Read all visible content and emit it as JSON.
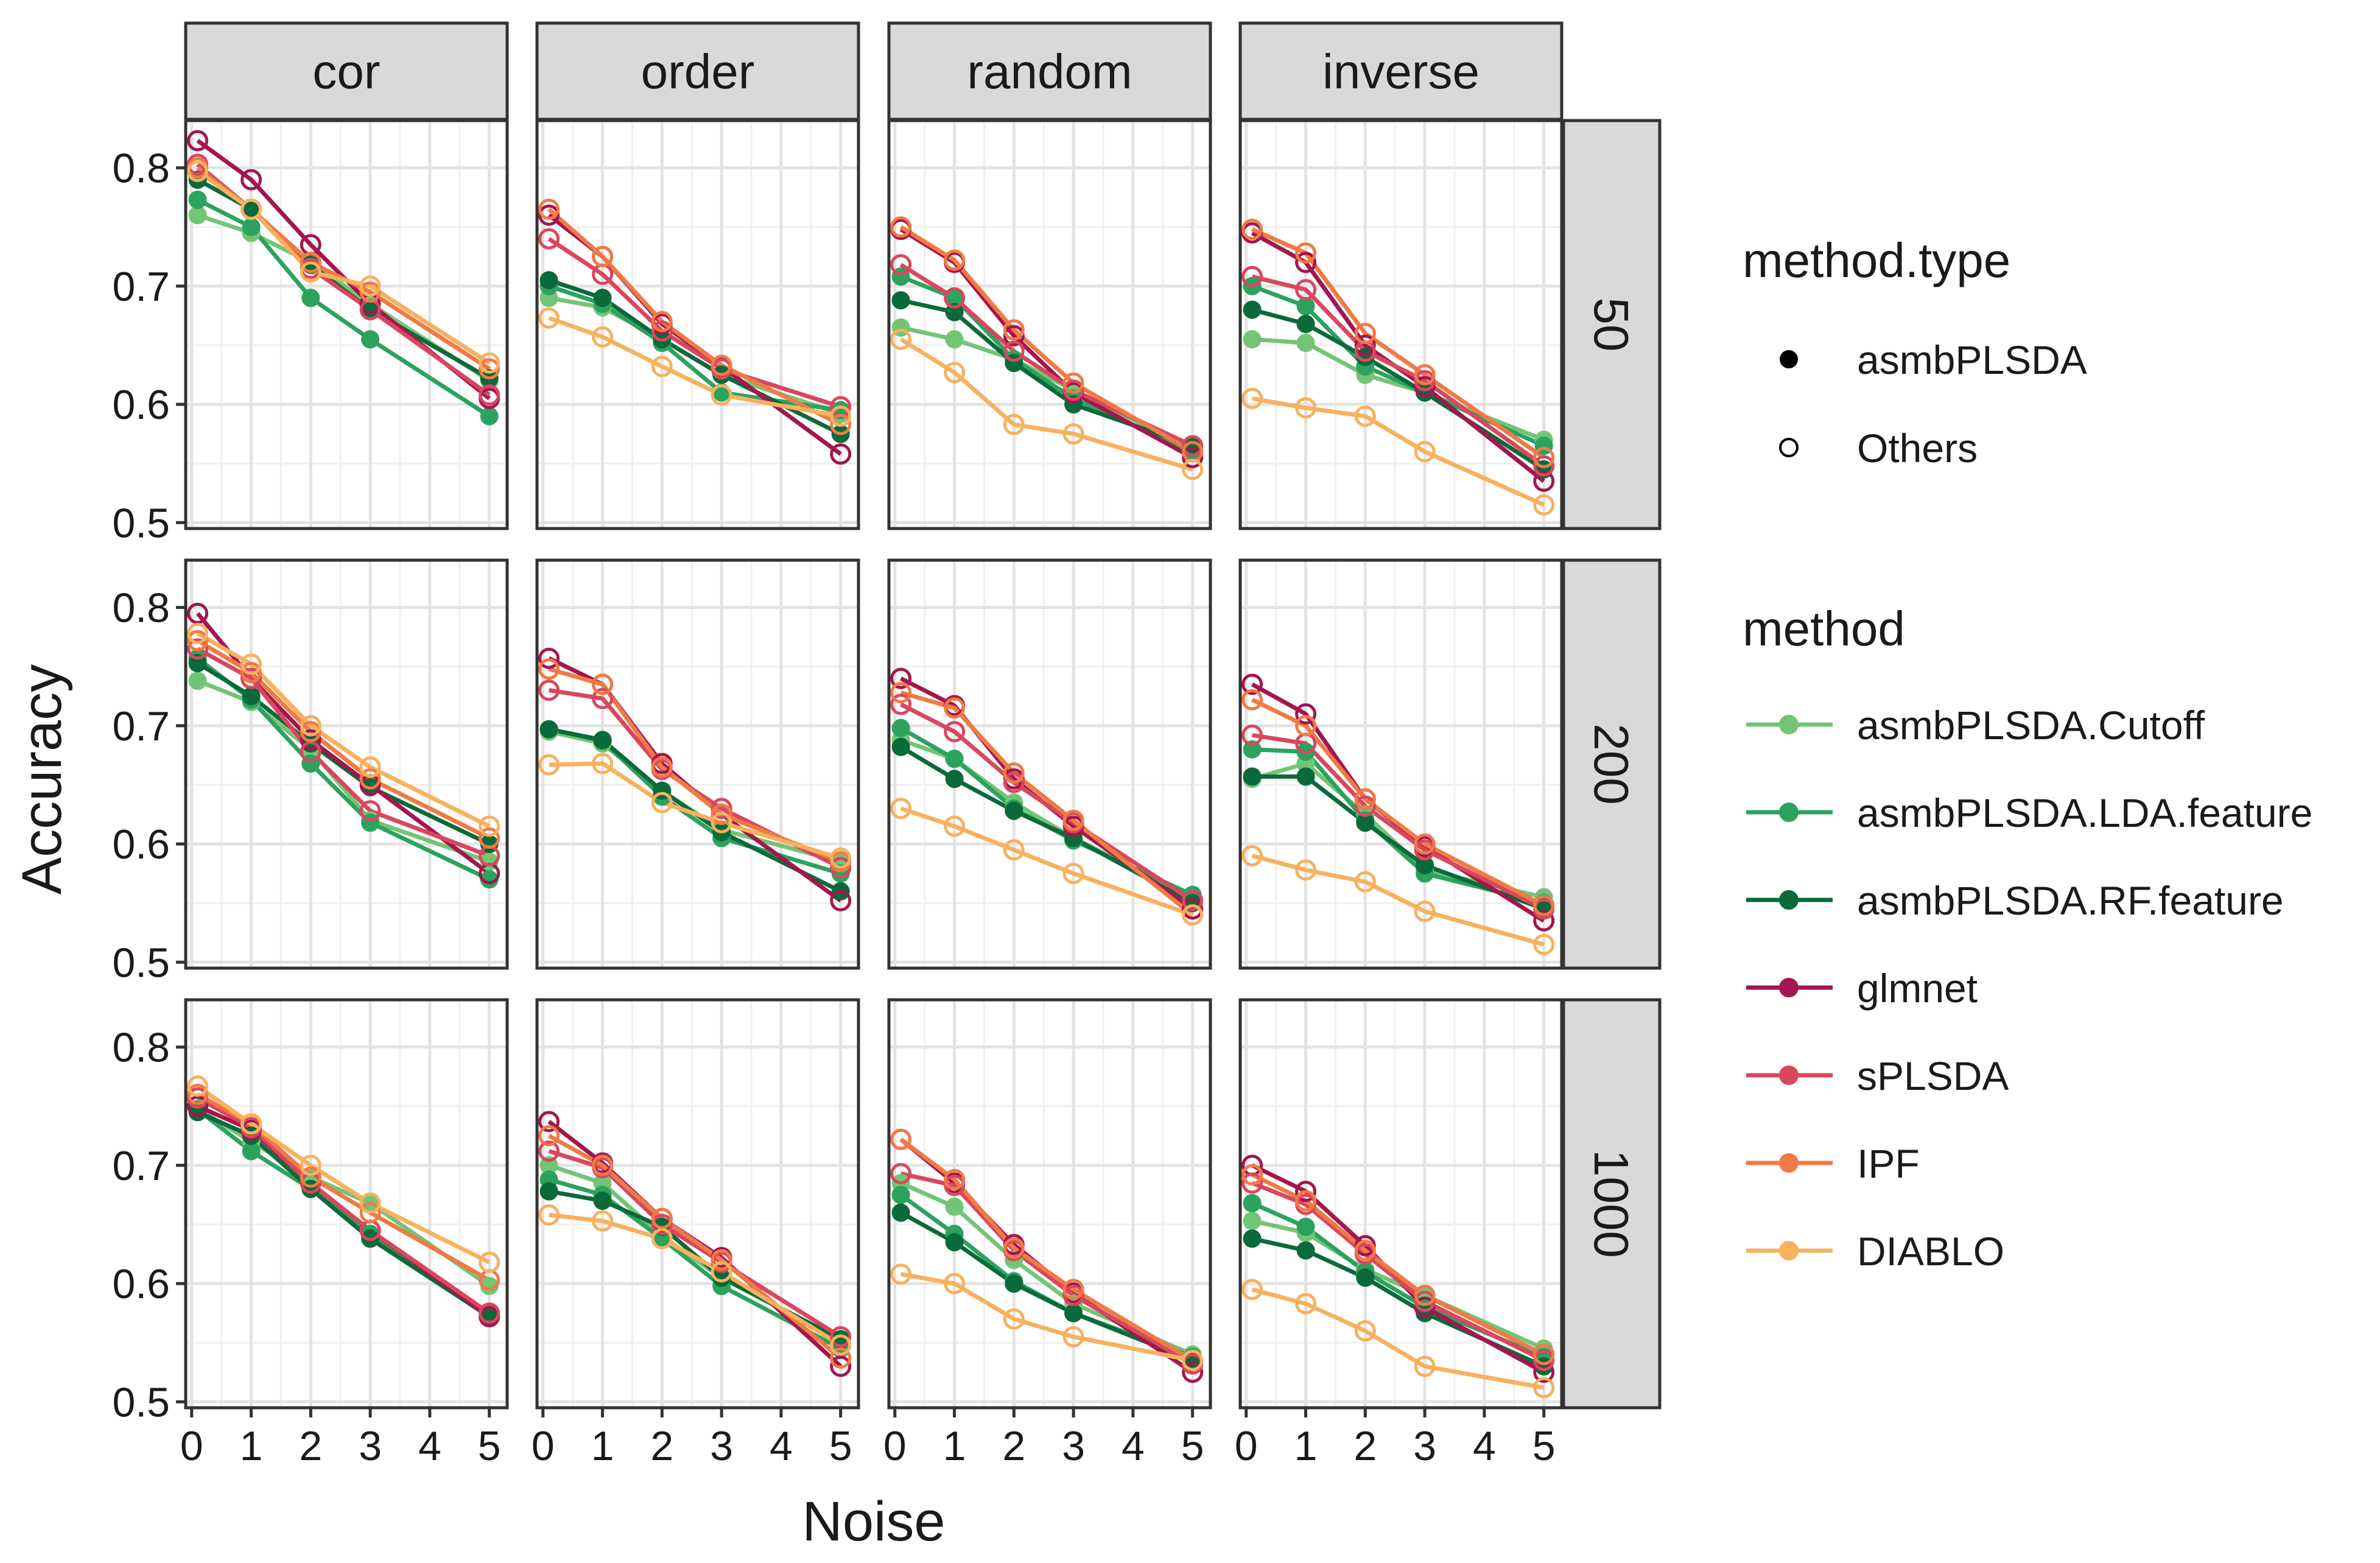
{
  "chart_data": {
    "type": "line",
    "layout": "facet_grid",
    "xlabel": "Noise",
    "ylabel": "Accuracy",
    "x_ticks": [
      0,
      1,
      2,
      3,
      4,
      5
    ],
    "y_ticks": [
      0.5,
      0.6,
      0.7,
      0.8
    ],
    "xlim": [
      -0.1,
      5.3
    ],
    "ylim": [
      0.495,
      0.84
    ],
    "grid": true,
    "col_facets": [
      "cor",
      "order",
      "random",
      "inverse"
    ],
    "row_facets": [
      "50",
      "200",
      "1000"
    ],
    "x": [
      0.1,
      1,
      2,
      3,
      5
    ],
    "legend_type": {
      "title": "method.type",
      "items": [
        {
          "label": "asmbPLSDA",
          "shape": "filled"
        },
        {
          "label": "Others",
          "shape": "open"
        }
      ]
    },
    "legend_method": {
      "title": "method",
      "items": [
        {
          "label": "asmbPLSDA.Cutoff",
          "color": "#74c476"
        },
        {
          "label": "asmbPLSDA.LDA.feature",
          "color": "#2ca25f"
        },
        {
          "label": "asmbPLSDA.RF.feature",
          "color": "#0b6a3a"
        },
        {
          "label": "glmnet",
          "color": "#a3164f"
        },
        {
          "label": "sPLSDA",
          "color": "#d9475e"
        },
        {
          "label": "IPF",
          "color": "#f07a45"
        },
        {
          "label": "DIABLO",
          "color": "#f7b15f"
        }
      ]
    },
    "series_order": [
      "asmbPLSDA.Cutoff",
      "asmbPLSDA.LDA.feature",
      "asmbPLSDA.RF.feature",
      "glmnet",
      "sPLSDA",
      "IPF",
      "DIABLO"
    ],
    "series_filled": [
      true,
      true,
      true,
      false,
      false,
      false,
      false
    ],
    "panels": [
      {
        "row": "50",
        "col": "cor",
        "values": [
          [
            0.76,
            0.745,
            0.72,
            0.685,
            0.62
          ],
          [
            0.773,
            0.75,
            0.69,
            0.655,
            0.59
          ],
          [
            0.79,
            0.765,
            0.718,
            0.68,
            0.622
          ],
          [
            0.823,
            0.79,
            0.735,
            0.685,
            0.605
          ],
          [
            0.803,
            0.765,
            0.715,
            0.68,
            0.608
          ],
          [
            0.8,
            0.765,
            0.72,
            0.695,
            0.63
          ],
          [
            0.797,
            0.765,
            0.712,
            0.7,
            0.635
          ]
        ]
      },
      {
        "row": "50",
        "col": "order",
        "values": [
          [
            0.69,
            0.682,
            0.655,
            0.625,
            0.592
          ],
          [
            0.7,
            0.685,
            0.652,
            0.61,
            0.595
          ],
          [
            0.705,
            0.69,
            0.655,
            0.625,
            0.575
          ],
          [
            0.76,
            0.725,
            0.668,
            0.632,
            0.558
          ],
          [
            0.74,
            0.71,
            0.662,
            0.63,
            0.598
          ],
          [
            0.765,
            0.725,
            0.67,
            0.633,
            0.583
          ],
          [
            0.673,
            0.657,
            0.632,
            0.608,
            0.59
          ]
        ]
      },
      {
        "row": "50",
        "col": "random",
        "values": [
          [
            0.665,
            0.655,
            0.638,
            0.612,
            0.562
          ],
          [
            0.708,
            0.69,
            0.638,
            0.605,
            0.56
          ],
          [
            0.688,
            0.678,
            0.635,
            0.6,
            0.565
          ],
          [
            0.748,
            0.72,
            0.658,
            0.61,
            0.555
          ],
          [
            0.718,
            0.69,
            0.645,
            0.612,
            0.565
          ],
          [
            0.75,
            0.722,
            0.663,
            0.618,
            0.56
          ],
          [
            0.655,
            0.627,
            0.583,
            0.575,
            0.545
          ]
        ]
      },
      {
        "row": "50",
        "col": "inverse",
        "values": [
          [
            0.655,
            0.652,
            0.625,
            0.61,
            0.57
          ],
          [
            0.7,
            0.683,
            0.632,
            0.61,
            0.565
          ],
          [
            0.68,
            0.668,
            0.64,
            0.61,
            0.545
          ],
          [
            0.745,
            0.72,
            0.65,
            0.615,
            0.535
          ],
          [
            0.708,
            0.697,
            0.645,
            0.62,
            0.548
          ],
          [
            0.748,
            0.728,
            0.66,
            0.625,
            0.555
          ],
          [
            0.605,
            0.597,
            0.59,
            0.56,
            0.515
          ]
        ]
      },
      {
        "row": "200",
        "col": "cor",
        "values": [
          [
            0.738,
            0.72,
            0.68,
            0.62,
            0.585
          ],
          [
            0.757,
            0.722,
            0.668,
            0.618,
            0.57
          ],
          [
            0.753,
            0.725,
            0.685,
            0.648,
            0.6
          ],
          [
            0.795,
            0.74,
            0.688,
            0.65,
            0.575
          ],
          [
            0.765,
            0.74,
            0.678,
            0.628,
            0.59
          ],
          [
            0.772,
            0.745,
            0.695,
            0.655,
            0.605
          ],
          [
            0.778,
            0.752,
            0.7,
            0.665,
            0.615
          ]
        ]
      },
      {
        "row": "200",
        "col": "order",
        "values": [
          [
            0.695,
            0.685,
            0.645,
            0.612,
            0.585
          ],
          [
            0.697,
            0.687,
            0.64,
            0.605,
            0.575
          ],
          [
            0.697,
            0.688,
            0.645,
            0.61,
            0.56
          ],
          [
            0.757,
            0.735,
            0.668,
            0.625,
            0.552
          ],
          [
            0.73,
            0.723,
            0.663,
            0.63,
            0.58
          ],
          [
            0.748,
            0.735,
            0.665,
            0.625,
            0.585
          ],
          [
            0.667,
            0.668,
            0.635,
            0.618,
            0.588
          ]
        ]
      },
      {
        "row": "200",
        "col": "random",
        "values": [
          [
            0.688,
            0.672,
            0.635,
            0.605,
            0.555
          ],
          [
            0.698,
            0.672,
            0.63,
            0.603,
            0.557
          ],
          [
            0.682,
            0.655,
            0.628,
            0.605,
            0.55
          ],
          [
            0.74,
            0.717,
            0.655,
            0.615,
            0.545
          ],
          [
            0.718,
            0.695,
            0.652,
            0.618,
            0.552
          ],
          [
            0.728,
            0.715,
            0.66,
            0.62,
            0.54
          ],
          [
            0.63,
            0.615,
            0.595,
            0.575,
            0.54
          ]
        ]
      },
      {
        "row": "200",
        "col": "inverse",
        "values": [
          [
            0.655,
            0.668,
            0.625,
            0.578,
            0.555
          ],
          [
            0.68,
            0.678,
            0.62,
            0.575,
            0.55
          ],
          [
            0.657,
            0.657,
            0.618,
            0.582,
            0.545
          ],
          [
            0.735,
            0.71,
            0.638,
            0.598,
            0.535
          ],
          [
            0.692,
            0.685,
            0.632,
            0.595,
            0.545
          ],
          [
            0.722,
            0.7,
            0.638,
            0.6,
            0.548
          ],
          [
            0.59,
            0.578,
            0.568,
            0.543,
            0.515
          ]
        ]
      },
      {
        "row": "1000",
        "col": "cor",
        "values": [
          [
            0.748,
            0.72,
            0.69,
            0.668,
            0.598
          ],
          [
            0.747,
            0.712,
            0.68,
            0.642,
            0.575
          ],
          [
            0.745,
            0.725,
            0.68,
            0.638,
            0.572
          ],
          [
            0.75,
            0.73,
            0.685,
            0.645,
            0.572
          ],
          [
            0.757,
            0.732,
            0.685,
            0.645,
            0.575
          ],
          [
            0.76,
            0.735,
            0.69,
            0.66,
            0.603
          ],
          [
            0.767,
            0.735,
            0.7,
            0.668,
            0.618
          ]
        ]
      },
      {
        "row": "1000",
        "col": "order",
        "values": [
          [
            0.7,
            0.685,
            0.64,
            0.605,
            0.552
          ],
          [
            0.688,
            0.675,
            0.638,
            0.598,
            0.545
          ],
          [
            0.678,
            0.67,
            0.648,
            0.605,
            0.553
          ],
          [
            0.737,
            0.702,
            0.655,
            0.622,
            0.53
          ],
          [
            0.712,
            0.698,
            0.65,
            0.618,
            0.555
          ],
          [
            0.725,
            0.7,
            0.655,
            0.62,
            0.537
          ],
          [
            0.658,
            0.653,
            0.638,
            0.61,
            0.548
          ]
        ]
      },
      {
        "row": "1000",
        "col": "random",
        "values": [
          [
            0.685,
            0.665,
            0.62,
            0.583,
            0.54
          ],
          [
            0.675,
            0.642,
            0.602,
            0.575,
            0.538
          ],
          [
            0.66,
            0.635,
            0.6,
            0.575,
            0.535
          ],
          [
            0.722,
            0.685,
            0.633,
            0.592,
            0.525
          ],
          [
            0.693,
            0.683,
            0.628,
            0.59,
            0.532
          ],
          [
            0.722,
            0.688,
            0.63,
            0.595,
            0.535
          ],
          [
            0.608,
            0.6,
            0.57,
            0.555,
            0.535
          ]
        ]
      },
      {
        "row": "1000",
        "col": "inverse",
        "values": [
          [
            0.653,
            0.643,
            0.612,
            0.59,
            0.545
          ],
          [
            0.668,
            0.648,
            0.61,
            0.58,
            0.538
          ],
          [
            0.638,
            0.628,
            0.605,
            0.575,
            0.53
          ],
          [
            0.7,
            0.678,
            0.632,
            0.58,
            0.525
          ],
          [
            0.685,
            0.667,
            0.625,
            0.585,
            0.535
          ],
          [
            0.692,
            0.67,
            0.628,
            0.59,
            0.54
          ],
          [
            0.595,
            0.583,
            0.56,
            0.53,
            0.512
          ]
        ]
      }
    ]
  }
}
